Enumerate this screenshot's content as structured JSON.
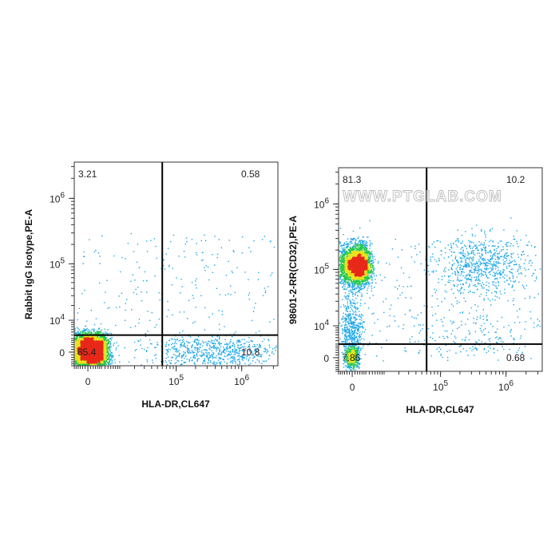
{
  "watermark": "WWW.PTGLAB.COM",
  "chart_data": [
    {
      "type": "scatter",
      "subtype": "flow-cytometry-density-dot-plot",
      "xlabel": "HLA-DR,CL647",
      "ylabel": "Rabbit IgG Isotype,PE-A",
      "x_scale": "biexponential",
      "y_scale": "biexponential",
      "x_ticks": [
        {
          "value": 0,
          "label": "0"
        },
        {
          "value": 100000,
          "label": "10",
          "exp": "5"
        },
        {
          "value": 1000000,
          "label": "10",
          "exp": "6"
        }
      ],
      "y_ticks": [
        {
          "value": 0,
          "label": "0"
        },
        {
          "value": 10000,
          "label": "10",
          "exp": "4"
        },
        {
          "value": 100000,
          "label": "10",
          "exp": "5"
        },
        {
          "value": 1000000,
          "label": "10",
          "exp": "6"
        }
      ],
      "quadrant_percentages": {
        "upper_left": "3.21",
        "upper_right": "0.58",
        "lower_left": "85.4",
        "lower_right": "10.8"
      },
      "gate": {
        "x": 60000,
        "y": 4000
      },
      "populations": [
        {
          "name": "",
          "x": 500,
          "y": 0,
          "sx": 2200,
          "sy": 2200,
          "n": 4800
        },
        {
          "name": "",
          "x": 400000,
          "y": 0,
          "sx": 0.55,
          "sy": 1600,
          "n": 700
        }
      ],
      "grid": false,
      "legend": "none"
    },
    {
      "type": "scatter",
      "subtype": "flow-cytometry-density-dot-plot",
      "xlabel": "HLA-DR,CL647",
      "ylabel": "98601-2-RR(CD32),PE-A",
      "x_scale": "biexponential",
      "y_scale": "biexponential",
      "x_ticks": [
        {
          "value": 0,
          "label": "0"
        },
        {
          "value": 100000,
          "label": "10",
          "exp": "5"
        },
        {
          "value": 1000000,
          "label": "10",
          "exp": "6"
        }
      ],
      "y_ticks": [
        {
          "value": 0,
          "label": "0"
        },
        {
          "value": 10000,
          "label": "10",
          "exp": "4"
        },
        {
          "value": 100000,
          "label": "10",
          "exp": "5"
        },
        {
          "value": 1000000,
          "label": "10",
          "exp": "6"
        }
      ],
      "quadrant_percentages": {
        "upper_left": "81.3",
        "upper_right": "10.2",
        "lower_left": "7.86",
        "lower_right": "0.68"
      },
      "gate": {
        "x": 60000,
        "y": 3000
      },
      "populations": [
        {
          "name": "",
          "x": 900,
          "y": 115000,
          "sx": 1700,
          "sy": 0.16,
          "n": 3200
        },
        {
          "name": "",
          "x": 0,
          "y": 9000,
          "sx": 1100,
          "sy": 0.35,
          "n": 450
        },
        {
          "name": "",
          "x": 0,
          "y": 0,
          "sx": 700,
          "sy": 1100,
          "n": 550
        },
        {
          "name": "",
          "x": 450000,
          "y": 115000,
          "sx": 0.35,
          "sy": 0.22,
          "n": 700
        },
        {
          "name": "",
          "x": 300000,
          "y": 8000,
          "sx": 0.6,
          "sy": 0.45,
          "n": 180
        }
      ],
      "grid": false,
      "legend": "none"
    }
  ]
}
